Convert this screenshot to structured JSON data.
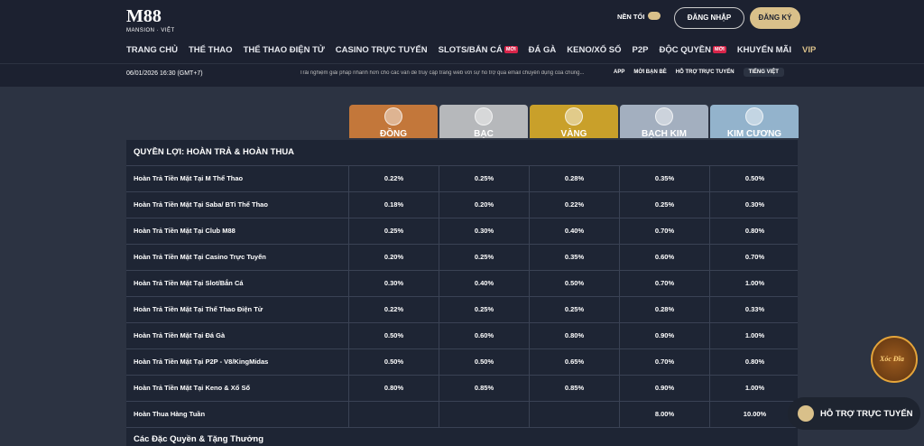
{
  "header": {
    "logo": "M88",
    "logo_sub": "MANSION · VIỆT",
    "theme_toggle": "NỀN TỐI",
    "login": "ĐĂNG NHẬP",
    "register": "ĐĂNG KÝ"
  },
  "nav": [
    {
      "label": "TRANG CHỦ"
    },
    {
      "label": "THỂ THAO"
    },
    {
      "label": "THỂ THAO ĐIỆN TỬ"
    },
    {
      "label": "CASINO TRỰC TUYẾN"
    },
    {
      "label": "SLOTS/BẮN CÁ",
      "badge": "MỚI"
    },
    {
      "label": "ĐÁ GÀ"
    },
    {
      "label": "KENO/XỔ SỐ"
    },
    {
      "label": "P2P"
    },
    {
      "label": "ĐỘC QUYỀN",
      "badge": "MỚI"
    },
    {
      "label": "KHUYẾN MÃI"
    },
    {
      "label": "VIP"
    }
  ],
  "subbar": {
    "datetime": "06/01/2026 16:30 (GMT+7)",
    "marquee": "Trải nghiệm giải pháp nhanh hơn cho các vấn đề truy cập trang web với sự hỗ trợ qua email chuyên dụng của chúng...",
    "links": [
      "APP",
      "MỜI BẠN BÈ",
      "HỖ TRỢ TRỰC TUYẾN",
      "TIẾNG VIỆT"
    ]
  },
  "tiers": [
    "ĐỒNG",
    "BẠC",
    "VÀNG",
    "BẠCH KIM",
    "KIM CƯƠNG"
  ],
  "table": {
    "section": "QUYỀN LỢI: HOÀN TRẢ & HOÀN THUA",
    "rows": [
      [
        "Hoàn Trả Tiền Mặt Tại M Thể Thao",
        "0.22%",
        "0.25%",
        "0.28%",
        "0.35%",
        "0.50%"
      ],
      [
        "Hoàn Trả Tiền Mặt Tại Saba/ BTi Thể Thao",
        "0.18%",
        "0.20%",
        "0.22%",
        "0.25%",
        "0.30%"
      ],
      [
        "Hoàn Trả Tiền Mặt Tại Club M88",
        "0.25%",
        "0.30%",
        "0.40%",
        "0.70%",
        "0.80%"
      ],
      [
        "Hoàn Trả Tiền Mặt Tại Casino Trực Tuyến",
        "0.20%",
        "0.25%",
        "0.35%",
        "0.60%",
        "0.70%"
      ],
      [
        "Hoàn Trả Tiền Mặt Tại Slot/Bắn Cá",
        "0.30%",
        "0.40%",
        "0.50%",
        "0.70%",
        "1.00%"
      ],
      [
        "Hoàn Trả Tiền Mặt Tại Thể Thao Điện Tử",
        "0.22%",
        "0.25%",
        "0.25%",
        "0.28%",
        "0.33%"
      ],
      [
        "Hoàn Trả Tiền Mặt Tại Đá Gà",
        "0.50%",
        "0.60%",
        "0.80%",
        "0.90%",
        "1.00%"
      ],
      [
        "Hoàn Trả Tiền Mặt Tại P2P - V8/KingMidas",
        "0.50%",
        "0.50%",
        "0.65%",
        "0.70%",
        "0.80%"
      ],
      [
        "Hoàn Trả Tiền Mặt Tại Keno & Xổ Số",
        "0.80%",
        "0.85%",
        "0.85%",
        "0.90%",
        "1.00%"
      ],
      [
        "Hoàn Thua Hàng Tuần",
        null,
        null,
        null,
        "8.00%",
        "10.00%"
      ]
    ],
    "next_section": "Các Đặc Quyền & Tặng Thưởng"
  },
  "floating": {
    "game_label": "Xóc Đĩa",
    "chat": "HỖ TRỢ TRỰC TUYẾN"
  }
}
